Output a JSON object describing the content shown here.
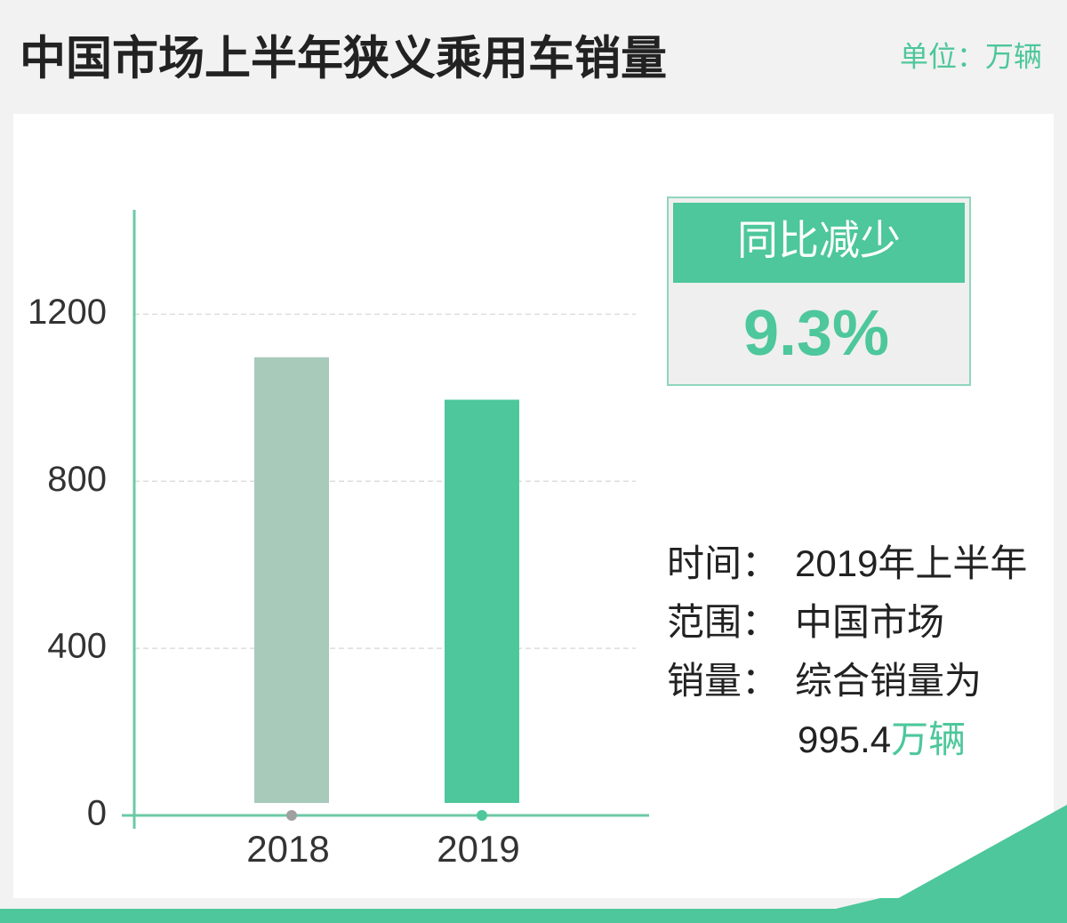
{
  "chart_data": {
    "type": "bar",
    "title": "中国市场上半年狭义乘用车销量",
    "unit": "单位：万辆",
    "categories": [
      "2018",
      "2019"
    ],
    "values": [
      1097,
      995.4
    ],
    "colors": [
      "#a7cabb",
      "#4dc79b"
    ],
    "ylim": [
      0,
      1450
    ],
    "yticks": [
      0,
      400,
      800,
      1200
    ],
    "grid": true
  },
  "callout": {
    "label": "同比减少",
    "text": "9.3%"
  },
  "info": [
    {
      "label": "时间：",
      "text": "2019年上半年"
    },
    {
      "label": "范围：",
      "text": "中国市场"
    },
    {
      "label": "销量：",
      "text": "综合销量为",
      "amount": "995.4",
      "unit": "万辆"
    }
  ]
}
